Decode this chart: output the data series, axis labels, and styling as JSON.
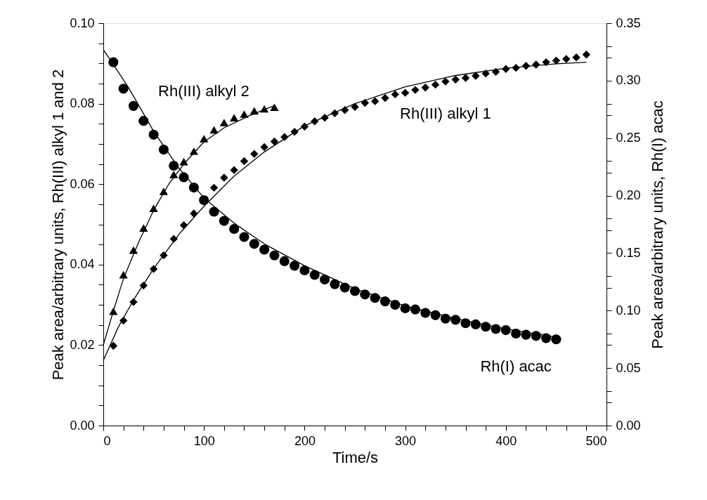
{
  "chart_data": {
    "type": "scatter",
    "xlabel": "Time/s",
    "ylabel": "Peak area/arbitrary units, Rh(III) alkyl 1 and 2",
    "y2label": "Peak area/arbitrary units, Rh(I) acac",
    "xlim": [
      0,
      500
    ],
    "ylim": [
      0,
      0.1
    ],
    "y2lim": [
      0,
      0.35
    ],
    "xticks": [
      0,
      {
        "value": 20,
        "label": null
      },
      {
        "value": 40,
        "label": null
      },
      {
        "value": 60,
        "label": null
      },
      {
        "value": 80,
        "label": null
      },
      100,
      {
        "value": 120,
        "label": null
      },
      {
        "value": 140,
        "label": null
      },
      {
        "value": 160,
        "label": null
      },
      {
        "value": 180,
        "label": null
      },
      200,
      {
        "value": 220,
        "label": null
      },
      {
        "value": 240,
        "label": null
      },
      {
        "value": 260,
        "label": null
      },
      {
        "value": 280,
        "label": null
      },
      300,
      {
        "value": 320,
        "label": null
      },
      {
        "value": 340,
        "label": null
      },
      {
        "value": 360,
        "label": null
      },
      {
        "value": 380,
        "label": null
      },
      400,
      {
        "value": 420,
        "label": null
      },
      {
        "value": 440,
        "label": null
      },
      {
        "value": 460,
        "label": null
      },
      {
        "value": 480,
        "label": null
      },
      500
    ],
    "yticks": [
      {
        "value": 0,
        "label": "0.00"
      },
      {
        "value": 0.005,
        "label": null
      },
      {
        "value": 0.01,
        "label": null
      },
      {
        "value": 0.015,
        "label": null
      },
      {
        "value": 0.02,
        "label": "0.02"
      },
      {
        "value": 0.025,
        "label": null
      },
      {
        "value": 0.03,
        "label": null
      },
      {
        "value": 0.035,
        "label": null
      },
      {
        "value": 0.04,
        "label": "0.04"
      },
      {
        "value": 0.045,
        "label": null
      },
      {
        "value": 0.05,
        "label": null
      },
      {
        "value": 0.055,
        "label": null
      },
      {
        "value": 0.06,
        "label": "0.06"
      },
      {
        "value": 0.065,
        "label": null
      },
      {
        "value": 0.07,
        "label": null
      },
      {
        "value": 0.075,
        "label": null
      },
      {
        "value": 0.08,
        "label": "0.08"
      },
      {
        "value": 0.085,
        "label": null
      },
      {
        "value": 0.09,
        "label": null
      },
      {
        "value": 0.095,
        "label": null
      },
      {
        "value": 0.1,
        "label": "0.10"
      }
    ],
    "y2ticks": [
      {
        "value": 0,
        "label": "0.00"
      },
      {
        "value": 0.02,
        "label": null
      },
      {
        "value": 0.03,
        "label": null
      },
      {
        "value": 0.05,
        "label": "0.05"
      },
      {
        "value": 0.07,
        "label": null
      },
      {
        "value": 0.08,
        "label": null
      },
      {
        "value": 0.1,
        "label": "0.10"
      },
      {
        "value": 0.12,
        "label": null
      },
      {
        "value": 0.13,
        "label": null
      },
      {
        "value": 0.15,
        "label": "0.15"
      },
      {
        "value": 0.17,
        "label": null
      },
      {
        "value": 0.18,
        "label": null
      },
      {
        "value": 0.2,
        "label": "0.20"
      },
      {
        "value": 0.22,
        "label": null
      },
      {
        "value": 0.23,
        "label": null
      },
      {
        "value": 0.25,
        "label": "0.25"
      },
      {
        "value": 0.27,
        "label": null
      },
      {
        "value": 0.28,
        "label": null
      },
      {
        "value": 0.3,
        "label": "0.30"
      },
      {
        "value": 0.32,
        "label": null
      },
      {
        "value": 0.33,
        "label": null
      },
      {
        "value": 0.35,
        "label": "0.35"
      }
    ],
    "series": [
      {
        "name": "Rh(III) alkyl 2",
        "marker": "triangle",
        "color": "#000000",
        "x": [
          10,
          20,
          30,
          40,
          50,
          60,
          70,
          80,
          90,
          100,
          110,
          120,
          130,
          140,
          150,
          160,
          170
        ],
        "values": [
          0.0284,
          0.0375,
          0.0436,
          0.0491,
          0.054,
          0.0582,
          0.0624,
          0.0656,
          0.0682,
          0.0713,
          0.0735,
          0.0753,
          0.0765,
          0.0774,
          0.0782,
          0.0787,
          0.0791
        ]
      },
      {
        "name": "Rh(III) alkyl 1",
        "marker": "diamond",
        "color": "#000000",
        "x": [
          10,
          20,
          30,
          40,
          50,
          60,
          70,
          80,
          90,
          100,
          110,
          120,
          130,
          140,
          150,
          160,
          170,
          180,
          190,
          200,
          210,
          220,
          230,
          240,
          250,
          260,
          270,
          280,
          290,
          300,
          310,
          320,
          330,
          340,
          350,
          360,
          370,
          380,
          390,
          400,
          410,
          420,
          430,
          440,
          450,
          460,
          470,
          480
        ],
        "values": [
          0.0198,
          0.0261,
          0.0307,
          0.0348,
          0.0389,
          0.0423,
          0.0464,
          0.0498,
          0.0527,
          null,
          0.0591,
          0.0616,
          0.0635,
          0.0657,
          0.0675,
          0.0692,
          0.0706,
          0.0717,
          0.073,
          0.0743,
          0.0756,
          0.0765,
          0.0776,
          0.0784,
          0.0792,
          0.0802,
          0.0806,
          0.0814,
          0.0823,
          0.0827,
          0.0834,
          0.084,
          0.0847,
          0.0855,
          0.086,
          0.0864,
          0.0869,
          0.0875,
          0.0879,
          0.0886,
          0.0889,
          0.0894,
          0.0897,
          0.0903,
          0.0907,
          0.0911,
          0.0915,
          0.0922
        ]
      },
      {
        "name": "Rh(I) acac",
        "marker": "circle",
        "axis": "y2",
        "color": "#000000",
        "x": [
          10,
          20,
          30,
          40,
          50,
          60,
          70,
          80,
          90,
          100,
          110,
          120,
          130,
          140,
          150,
          160,
          170,
          180,
          190,
          200,
          210,
          220,
          230,
          240,
          250,
          260,
          270,
          280,
          290,
          300,
          310,
          320,
          330,
          340,
          350,
          360,
          370,
          380,
          390,
          400,
          410,
          420,
          430,
          440,
          450
        ],
        "values": [
          0.316,
          0.293,
          0.278,
          0.265,
          0.253,
          0.24,
          0.226,
          0.216,
          0.207,
          0.196,
          0.186,
          0.178,
          0.171,
          0.164,
          0.158,
          0.153,
          0.148,
          0.143,
          0.139,
          0.135,
          0.131,
          0.127,
          0.123,
          0.12,
          0.117,
          0.114,
          0.111,
          0.108,
          0.105,
          0.102,
          0.101,
          0.098,
          0.096,
          0.093,
          0.092,
          0.089,
          0.088,
          0.086,
          0.084,
          0.083,
          0.08,
          0.079,
          0.078,
          0.076,
          0.075
        ]
      },
      {
        "type": "line",
        "line_style": "solid",
        "color": "#000000",
        "x": [
          0,
          10,
          20,
          35,
          50,
          65,
          80,
          100,
          120,
          145,
          170
        ],
        "values": [
          0.02,
          0.0285,
          0.0365,
          0.0455,
          0.0535,
          0.06,
          0.065,
          0.0705,
          0.074,
          0.077,
          0.0795
        ]
      },
      {
        "type": "line",
        "line_style": "solid",
        "color": "#000000",
        "x": [
          0,
          15,
          30,
          50,
          75,
          100,
          130,
          160,
          200,
          250,
          300,
          350,
          400,
          450,
          480
        ],
        "values": [
          0.0162,
          0.0245,
          0.0312,
          0.039,
          0.0475,
          0.0545,
          0.062,
          0.068,
          0.0745,
          0.08,
          0.0842,
          0.087,
          0.0888,
          0.0899,
          0.0903
        ]
      },
      {
        "type": "line",
        "line_style": "solid",
        "axis": "y2",
        "color": "#000000",
        "x": [
          0,
          10,
          25,
          50,
          75,
          100,
          130,
          160,
          200,
          250,
          300,
          350,
          400,
          450
        ],
        "values": [
          0.327,
          0.314,
          0.294,
          0.256,
          0.224,
          0.198,
          0.176,
          0.158,
          0.139,
          0.119,
          0.104,
          0.093,
          0.084,
          0.077
        ]
      }
    ]
  }
}
